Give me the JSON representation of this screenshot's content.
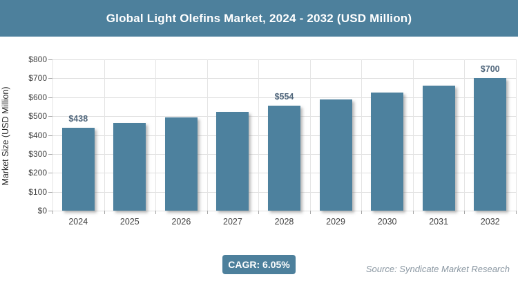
{
  "header": {
    "title": "Global Light Olefins Market, 2024 - 2032 (USD Million)"
  },
  "chart_data": {
    "type": "bar",
    "title": "Global Light Olefins Market, 2024 - 2032 (USD Million)",
    "categories": [
      "2024",
      "2025",
      "2026",
      "2027",
      "2028",
      "2029",
      "2030",
      "2031",
      "2032"
    ],
    "values": [
      438,
      465,
      493,
      522,
      554,
      588,
      623,
      661,
      700
    ],
    "data_labels": [
      {
        "index": 0,
        "text": "$438"
      },
      {
        "index": 4,
        "text": "$554"
      },
      {
        "index": 8,
        "text": "$700"
      }
    ],
    "xlabel": "",
    "ylabel": "Market Size (USD Million)",
    "ylim": [
      0,
      800
    ],
    "ytick_step": 100,
    "ytick_labels": [
      "$0",
      "$100",
      "$200",
      "$300",
      "$400",
      "$500",
      "$600",
      "$700",
      "$800"
    ],
    "grid": true,
    "legend": "none",
    "bar_color": "#4d819e"
  },
  "footer": {
    "cagr_label": "CAGR: 6.05%",
    "source": "Source: Syndicate Market Research"
  },
  "colors": {
    "accent_teal": "#4d809c",
    "bar_fill": "#4d819e",
    "gridline": "#dedede",
    "axis_text": "#404040",
    "data_label_text": "#51677c",
    "source_text": "#8a97a2",
    "title_text": "#ffffff"
  }
}
